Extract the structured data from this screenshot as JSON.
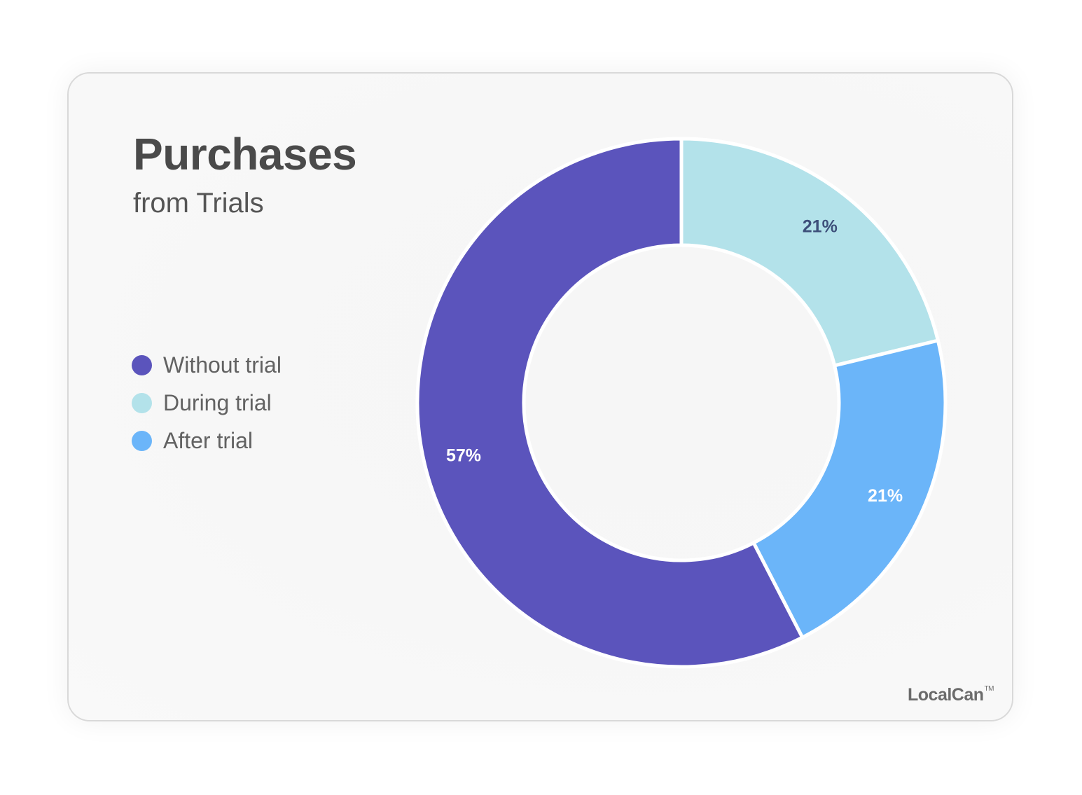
{
  "header": {
    "title": "Purchases",
    "subtitle": "from Trials"
  },
  "chart_data": {
    "type": "pie",
    "variant": "donut",
    "categories": [
      "Without trial",
      "During trial",
      "After trial"
    ],
    "values": [
      57,
      21,
      21
    ],
    "labels": [
      "57%",
      "21%",
      "21%"
    ],
    "colors": [
      "#5b54bc",
      "#b3e2ea",
      "#6bb5f9"
    ],
    "label_colors": [
      "#ffffff",
      "#3d4f7a",
      "#ffffff"
    ],
    "legend_position": "left"
  },
  "legend": {
    "items": [
      {
        "label": "Without trial",
        "color": "#5b54bc"
      },
      {
        "label": "During trial",
        "color": "#b3e2ea"
      },
      {
        "label": "After trial",
        "color": "#6bb5f9"
      }
    ]
  },
  "brand": {
    "name": "LocalCan",
    "mark": "TM"
  }
}
